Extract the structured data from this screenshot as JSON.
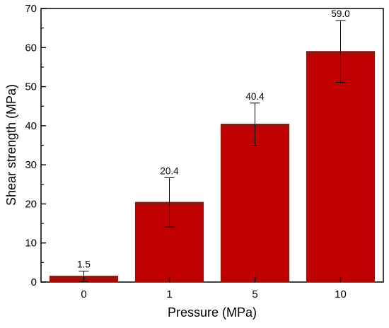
{
  "chart_data": {
    "type": "bar",
    "title": "",
    "xlabel": "Pressure (MPa)",
    "ylabel": "Shear strength (MPa)",
    "categories": [
      "0",
      "1",
      "5",
      "10"
    ],
    "values": [
      1.5,
      20.4,
      40.4,
      59.0
    ],
    "value_labels": [
      "1.5",
      "20.4",
      "40.4",
      "59.0"
    ],
    "errors": [
      1.3,
      6.3,
      5.4,
      7.9
    ],
    "ylim": [
      0,
      70
    ],
    "yticks": [
      "0",
      "10",
      "20",
      "30",
      "40",
      "50",
      "60",
      "70"
    ],
    "grid": false,
    "legend": "none",
    "colors": {
      "bar_fill": "#c00000",
      "bar_top": "#8b1a10",
      "axis": "#000000"
    }
  }
}
